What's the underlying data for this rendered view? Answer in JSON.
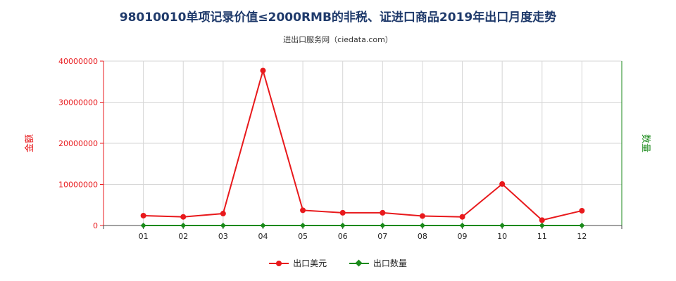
{
  "chart_data": {
    "type": "line",
    "title": "98010010单项记录价值≤2000RMB的非税、证进口商品2019年出口月度走势",
    "subtitle": "进出口服务网（ciedata.com）",
    "categories": [
      "01",
      "02",
      "03",
      "04",
      "05",
      "06",
      "07",
      "08",
      "09",
      "10",
      "11",
      "12"
    ],
    "series": [
      {
        "name": "出口美元",
        "axis": "left",
        "color": "#e8191c",
        "values": [
          2400000,
          2100000,
          2900000,
          37700000,
          3700000,
          3100000,
          3100000,
          2300000,
          2100000,
          10100000,
          1300000,
          3600000
        ]
      },
      {
        "name": "出口数量",
        "axis": "right",
        "color": "#1a8a1a",
        "values": [
          0,
          0,
          0,
          0,
          0,
          0,
          0,
          0,
          0,
          0,
          0,
          0
        ]
      }
    ],
    "y_left": {
      "label": "金额",
      "ylim": [
        0,
        40000000
      ],
      "ticks": [
        "0",
        "10000000",
        "20000000",
        "30000000",
        "40000000"
      ],
      "color": "#e8191c"
    },
    "y_right": {
      "label": "数量",
      "color": "#1a8a1a"
    },
    "grid": true,
    "legend_position": "bottom"
  }
}
